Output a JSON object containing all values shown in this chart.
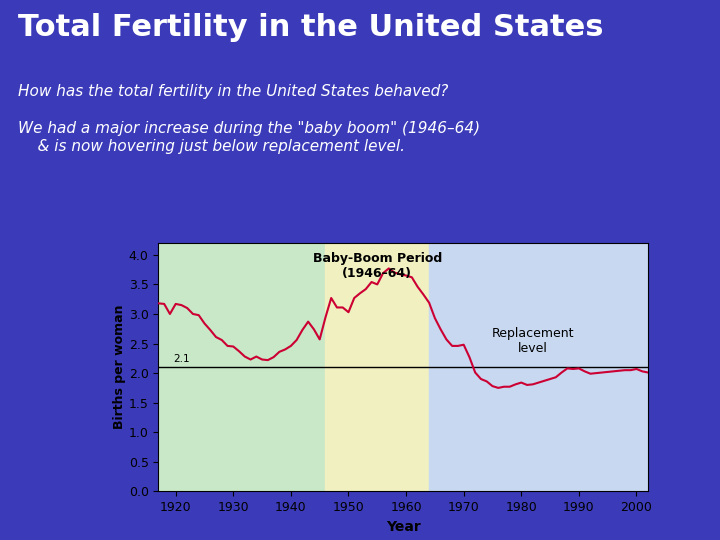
{
  "title": "Total Fertility in the United States",
  "subtitle1": "How has the total fertility in the United States behaved?",
  "subtitle2": "We had a major increase during the \"baby boom\" (1946–64)\n    & is now hovering just below replacement level.",
  "background_color": "#3b3bba",
  "title_color": "#ffffff",
  "subtitle_color": "#ffffff",
  "chart_bg": "#ffffff",
  "region1_color": "#c8e8c8",
  "region2_color": "#f0f0c0",
  "region3_color": "#c8d8f0",
  "replacement_level": 2.1,
  "ylabel": "Births per woman",
  "xlabel": "Year",
  "ylim": [
    0,
    4.2
  ],
  "xlim": [
    1917,
    2002
  ],
  "baby_boom_start": 1946,
  "baby_boom_end": 1964,
  "annotation_baby_boom": "Baby-Boom Period\n(1946–64)",
  "annotation_replacement": "Replacement\nlevel",
  "yticks": [
    0,
    0.5,
    1.0,
    1.5,
    2.0,
    2.5,
    3.0,
    3.5,
    4.0
  ],
  "xticks": [
    1920,
    1930,
    1940,
    1950,
    1960,
    1970,
    1980,
    1990,
    2000
  ],
  "years": [
    1917,
    1918,
    1919,
    1920,
    1921,
    1922,
    1923,
    1924,
    1925,
    1926,
    1927,
    1928,
    1929,
    1930,
    1931,
    1932,
    1933,
    1934,
    1935,
    1936,
    1937,
    1938,
    1939,
    1940,
    1941,
    1942,
    1943,
    1944,
    1945,
    1946,
    1947,
    1948,
    1949,
    1950,
    1951,
    1952,
    1953,
    1954,
    1955,
    1956,
    1957,
    1958,
    1959,
    1960,
    1961,
    1962,
    1963,
    1964,
    1965,
    1966,
    1967,
    1968,
    1969,
    1970,
    1971,
    1972,
    1973,
    1974,
    1975,
    1976,
    1977,
    1978,
    1979,
    1980,
    1981,
    1982,
    1983,
    1984,
    1985,
    1986,
    1987,
    1988,
    1989,
    1990,
    1991,
    1992,
    1993,
    1994,
    1995,
    1996,
    1997,
    1998,
    1999,
    2000,
    2001,
    2002
  ],
  "fertility": [
    3.18,
    3.17,
    3.0,
    3.17,
    3.15,
    3.1,
    3.0,
    2.98,
    2.84,
    2.73,
    2.61,
    2.56,
    2.46,
    2.45,
    2.37,
    2.28,
    2.23,
    2.28,
    2.23,
    2.22,
    2.27,
    2.36,
    2.4,
    2.46,
    2.56,
    2.73,
    2.87,
    2.74,
    2.57,
    2.94,
    3.27,
    3.11,
    3.11,
    3.03,
    3.27,
    3.35,
    3.42,
    3.54,
    3.5,
    3.69,
    3.77,
    3.7,
    3.67,
    3.65,
    3.62,
    3.46,
    3.33,
    3.19,
    2.93,
    2.74,
    2.57,
    2.46,
    2.46,
    2.48,
    2.27,
    2.01,
    1.9,
    1.86,
    1.78,
    1.75,
    1.77,
    1.77,
    1.81,
    1.84,
    1.8,
    1.81,
    1.84,
    1.87,
    1.9,
    1.93,
    2.01,
    2.08,
    2.07,
    2.08,
    2.03,
    1.99,
    2.0,
    2.01,
    2.02,
    2.03,
    2.04,
    2.05,
    2.05,
    2.07,
    2.03,
    2.01
  ]
}
